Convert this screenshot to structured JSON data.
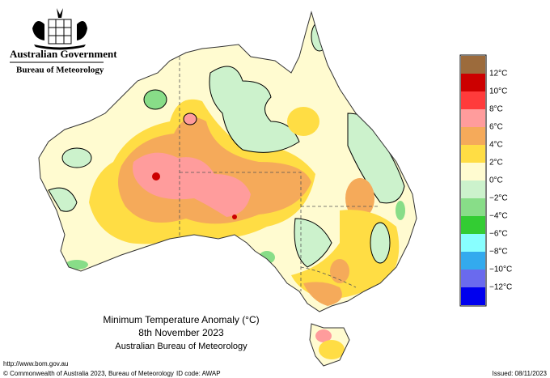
{
  "header": {
    "government": "Australian Government",
    "bureau": "Bureau of Meteorology"
  },
  "legend": {
    "colors": [
      "#9c6b3c",
      "#cc0000",
      "#ff3b3b",
      "#ff9c9c",
      "#f5aa5a",
      "#ffdd44",
      "#fffbd0",
      "#ccf2cc",
      "#88dd88",
      "#33cc33",
      "#88ffff",
      "#33aaee",
      "#6a6aee",
      "#0000ee"
    ],
    "labels": [
      "12°C",
      "10°C",
      "8°C",
      "6°C",
      "4°C",
      "2°C",
      "0°C",
      "−2°C",
      "−4°C",
      "−6°C",
      "−8°C",
      "−10°C",
      "−12°C"
    ]
  },
  "map_title": {
    "line1": "Minimum Temperature Anomaly (°C)",
    "line2": "8th November 2023",
    "line3": "Australian Bureau of Meteorology"
  },
  "footer": {
    "url": "http://www.bom.gov.au",
    "copyright": "© Commonwealth of Australia 2023, Bureau of Meteorology",
    "id_code": "ID code: AWAP",
    "issued": "Issued: 08/11/2023"
  }
}
